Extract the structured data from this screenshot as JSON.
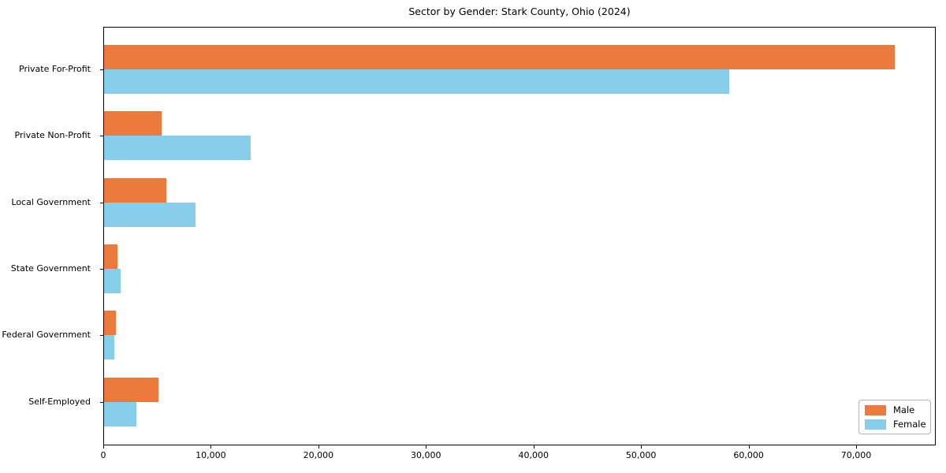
{
  "chart_data": {
    "type": "bar",
    "orientation": "horizontal",
    "title": "Sector by Gender: Stark County, Ohio (2024)",
    "xlabel": "",
    "ylabel": "",
    "grid": false,
    "legend_position": "lower right",
    "xlim": [
      0,
      77400
    ],
    "categories": [
      "Private For-Profit",
      "Private Non-Profit",
      "Local Government",
      "State Government",
      "Federal Government",
      "Self-Employed"
    ],
    "series": [
      {
        "name": "Male",
        "color": "#eb7a3c",
        "values": [
          73600,
          5400,
          5900,
          1300,
          1200,
          5100
        ]
      },
      {
        "name": "Female",
        "color": "#87ceeb",
        "values": [
          58200,
          13700,
          8600,
          1600,
          1000,
          3100
        ]
      }
    ],
    "x_ticks": [
      {
        "value": 0,
        "label": "0"
      },
      {
        "value": 10000,
        "label": "10,000"
      },
      {
        "value": 20000,
        "label": "20,000"
      },
      {
        "value": 30000,
        "label": "30,000"
      },
      {
        "value": 40000,
        "label": "40,000"
      },
      {
        "value": 50000,
        "label": "50,000"
      },
      {
        "value": 60000,
        "label": "60,000"
      },
      {
        "value": 70000,
        "label": "70,000"
      }
    ]
  }
}
